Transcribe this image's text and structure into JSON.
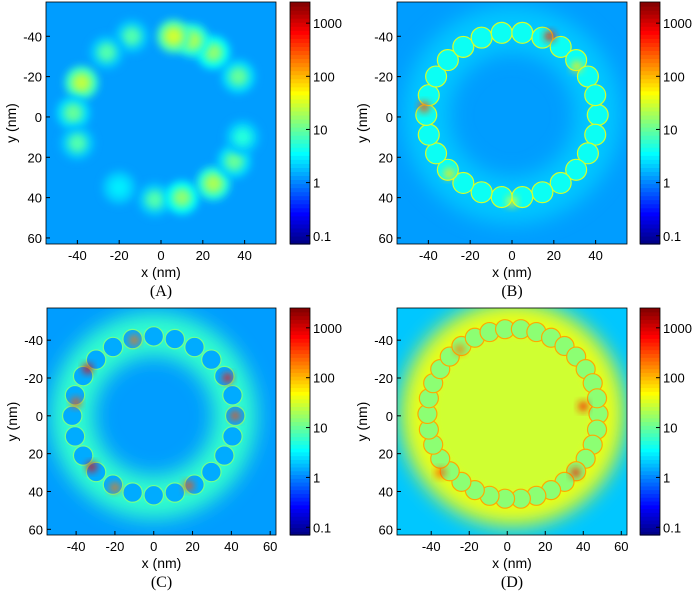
{
  "chart_data": [
    {
      "type": "heatmap",
      "label": "(A)",
      "xlabel": "x (nm)",
      "ylabel": "y (nm)",
      "xlim": [
        -55,
        55
      ],
      "ylim": [
        -57,
        63
      ],
      "xticks": [
        -40,
        -20,
        0,
        20,
        40
      ],
      "yticks": [
        -40,
        -20,
        0,
        20,
        40,
        60
      ],
      "colorbar": {
        "scale": "log",
        "range": [
          0.07,
          2500
        ],
        "ticks": [
          0.1,
          1,
          10,
          100,
          1000
        ],
        "tick_labels": [
          "0.1",
          "1",
          "10",
          "100",
          "1000"
        ],
        "colormap": "jet"
      },
      "background": 1.3,
      "hotspots": [
        {
          "x": -14,
          "y": -40,
          "v": 8
        },
        {
          "x": -26,
          "y": -32,
          "v": 8
        },
        {
          "x": -38,
          "y": -17,
          "v": 25
        },
        {
          "x": -42,
          "y": -2,
          "v": 10
        },
        {
          "x": -40,
          "y": 13,
          "v": 8
        },
        {
          "x": -20,
          "y": 35,
          "v": 3
        },
        {
          "x": -3,
          "y": 41,
          "v": 8
        },
        {
          "x": 10,
          "y": 40,
          "v": 15
        },
        {
          "x": 25,
          "y": 33,
          "v": 20
        },
        {
          "x": 35,
          "y": 22,
          "v": 10
        },
        {
          "x": 39,
          "y": 10,
          "v": 5
        },
        {
          "x": 37,
          "y": -20,
          "v": 10
        },
        {
          "x": 25,
          "y": -32,
          "v": 15
        },
        {
          "x": 15,
          "y": -38,
          "v": 20
        },
        {
          "x": 6,
          "y": -40,
          "v": 30
        }
      ]
    },
    {
      "type": "heatmap",
      "label": "(B)",
      "xlabel": "x (nm)",
      "ylabel": "y (nm)",
      "xlim": [
        -55,
        55
      ],
      "ylim": [
        -57,
        63
      ],
      "xticks": [
        -40,
        -20,
        0,
        20,
        40
      ],
      "yticks": [
        -40,
        -20,
        0,
        20,
        40,
        60
      ],
      "colorbar": {
        "scale": "log",
        "range": [
          0.07,
          2500
        ],
        "ticks": [
          0.1,
          1,
          10,
          100,
          1000
        ],
        "tick_labels": [
          "0.1",
          "1",
          "10",
          "100",
          "1000"
        ],
        "colormap": "jet"
      },
      "background": 1.3,
      "ring": {
        "cx": 0,
        "cy": -1,
        "r": 41,
        "count": 26,
        "v": 4,
        "halo": 2
      },
      "hotspots": [
        {
          "x": 18,
          "y": -40,
          "v": 500
        },
        {
          "x": -42,
          "y": -5,
          "v": 300
        },
        {
          "x": -30,
          "y": 28,
          "v": 60
        },
        {
          "x": 0,
          "y": 42,
          "v": 40
        },
        {
          "x": 31,
          "y": -25,
          "v": 60
        }
      ]
    },
    {
      "type": "heatmap",
      "label": "(C)",
      "xlabel": "x (nm)",
      "ylabel": "y (nm)",
      "xlim": [
        -55,
        63
      ],
      "ylim": [
        -57,
        63
      ],
      "xticks": [
        -40,
        -20,
        0,
        20,
        40,
        60
      ],
      "yticks": [
        -40,
        -20,
        0,
        20,
        40,
        60
      ],
      "colorbar": {
        "scale": "log",
        "range": [
          0.07,
          2500
        ],
        "ticks": [
          0.1,
          1,
          10,
          100,
          1000
        ],
        "tick_labels": [
          "0.1",
          "1",
          "10",
          "100",
          "1000"
        ],
        "colormap": "jet"
      },
      "background": 1.3,
      "ring": {
        "cx": 0,
        "cy": 0,
        "r": 42,
        "count": 24,
        "v": 1.5,
        "halo": 6
      },
      "hotspots": [
        {
          "x": -34,
          "y": -25,
          "v": 800
        },
        {
          "x": -32,
          "y": 27,
          "v": 800
        },
        {
          "x": 38,
          "y": -20,
          "v": 500
        },
        {
          "x": 42,
          "y": 0,
          "v": 300
        },
        {
          "x": -10,
          "y": -40,
          "v": 200
        },
        {
          "x": -20,
          "y": 38,
          "v": 200
        },
        {
          "x": -40,
          "y": -7,
          "v": 300
        },
        {
          "x": 18,
          "y": 37,
          "v": 300
        }
      ]
    },
    {
      "type": "heatmap",
      "label": "(D)",
      "xlabel": "x (nm)",
      "ylabel": "y (nm)",
      "xlim": [
        -58,
        63
      ],
      "ylim": [
        -57,
        63
      ],
      "xticks": [
        -40,
        -20,
        0,
        20,
        40,
        60
      ],
      "yticks": [
        -40,
        -20,
        0,
        20,
        40,
        60
      ],
      "colorbar": {
        "scale": "log",
        "range": [
          0.07,
          2500
        ],
        "ticks": [
          0.1,
          1,
          10,
          100,
          1000
        ],
        "tick_labels": [
          "0.1",
          "1",
          "10",
          "100",
          "1000"
        ],
        "colormap": "jet"
      },
      "background": 2,
      "interior": 30,
      "ring": {
        "cx": 3,
        "cy": -1,
        "r": 45,
        "count": 34,
        "v": 15,
        "halo": 40
      },
      "hotspots": [
        {
          "x": 40,
          "y": -5,
          "v": 500
        },
        {
          "x": 36,
          "y": 30,
          "v": 500
        },
        {
          "x": -35,
          "y": 30,
          "v": 300
        },
        {
          "x": -25,
          "y": -35,
          "v": 200
        }
      ]
    }
  ]
}
